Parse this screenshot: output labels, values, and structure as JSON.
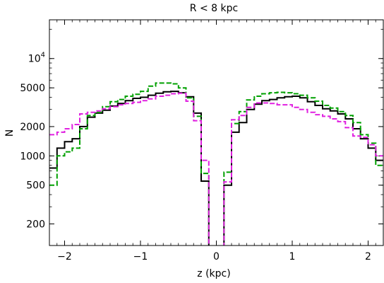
{
  "chart_data": {
    "type": "line",
    "title": "R < 8 kpc",
    "xlabel": "z (kpc)",
    "ylabel": "N",
    "xlim": [
      -2.2,
      2.2
    ],
    "ylim": [
      120,
      25000
    ],
    "yscale": "log",
    "grid": false,
    "x_ticks": [
      {
        "value": -2,
        "label": "−2"
      },
      {
        "value": -1,
        "label": "−1"
      },
      {
        "value": 0,
        "label": "0"
      },
      {
        "value": 1,
        "label": "1"
      },
      {
        "value": 2,
        "label": "2"
      }
    ],
    "y_ticks": [
      {
        "value": 200,
        "label": "200"
      },
      {
        "value": 500,
        "label": "500"
      },
      {
        "value": 1000,
        "label": "1000"
      },
      {
        "value": 2000,
        "label": "2000"
      },
      {
        "value": 5000,
        "label": "5000"
      },
      {
        "value": 10000,
        "label": "10^4"
      }
    ],
    "bin_edges": [
      -2.2,
      -2.1,
      -2.0,
      -1.9,
      -1.8,
      -1.7,
      -1.6,
      -1.5,
      -1.4,
      -1.3,
      -1.2,
      -1.1,
      -1.0,
      -0.9,
      -0.8,
      -0.7,
      -0.6,
      -0.5,
      -0.4,
      -0.3,
      -0.2,
      -0.1,
      0.0,
      0.1,
      0.2,
      0.3,
      0.4,
      0.5,
      0.6,
      0.7,
      0.8,
      0.9,
      1.0,
      1.1,
      1.2,
      1.3,
      1.4,
      1.5,
      1.6,
      1.7,
      1.8,
      1.9,
      2.0,
      2.1,
      2.2
    ],
    "series": [
      {
        "color": "#000000",
        "linestyle": "solid",
        "values": [
          750,
          1200,
          1400,
          1500,
          2000,
          2500,
          2750,
          2950,
          3250,
          3450,
          3700,
          3900,
          4000,
          4200,
          4400,
          4550,
          4600,
          4450,
          4050,
          2750,
          550,
          100,
          100,
          500,
          1750,
          2200,
          3000,
          3400,
          3700,
          3800,
          3950,
          4050,
          4100,
          3950,
          3600,
          3300,
          3050,
          2900,
          2700,
          2400,
          1900,
          1500,
          1200,
          900
        ]
      },
      {
        "color": "#00a000",
        "linestyle": "dashed",
        "values": [
          500,
          1000,
          1100,
          1200,
          1900,
          2600,
          2800,
          3200,
          3600,
          3800,
          4100,
          4300,
          4600,
          5200,
          5600,
          5600,
          5500,
          5000,
          3950,
          2550,
          660,
          100,
          100,
          680,
          2150,
          2850,
          3750,
          4100,
          4350,
          4450,
          4500,
          4450,
          4350,
          4200,
          3950,
          3650,
          3300,
          3100,
          2850,
          2600,
          2200,
          1650,
          1350,
          800
        ]
      },
      {
        "color": "#e020e0",
        "linestyle": "dashed",
        "values": [
          1650,
          1750,
          1900,
          2100,
          2700,
          2800,
          2900,
          3050,
          3200,
          3350,
          3450,
          3550,
          3700,
          3850,
          4100,
          4200,
          4350,
          4400,
          3650,
          2300,
          900,
          100,
          100,
          540,
          2350,
          2600,
          3150,
          3500,
          3500,
          3450,
          3350,
          3350,
          3150,
          3000,
          2800,
          2650,
          2550,
          2400,
          2250,
          1950,
          1600,
          1550,
          1300,
          1000
        ]
      }
    ]
  }
}
